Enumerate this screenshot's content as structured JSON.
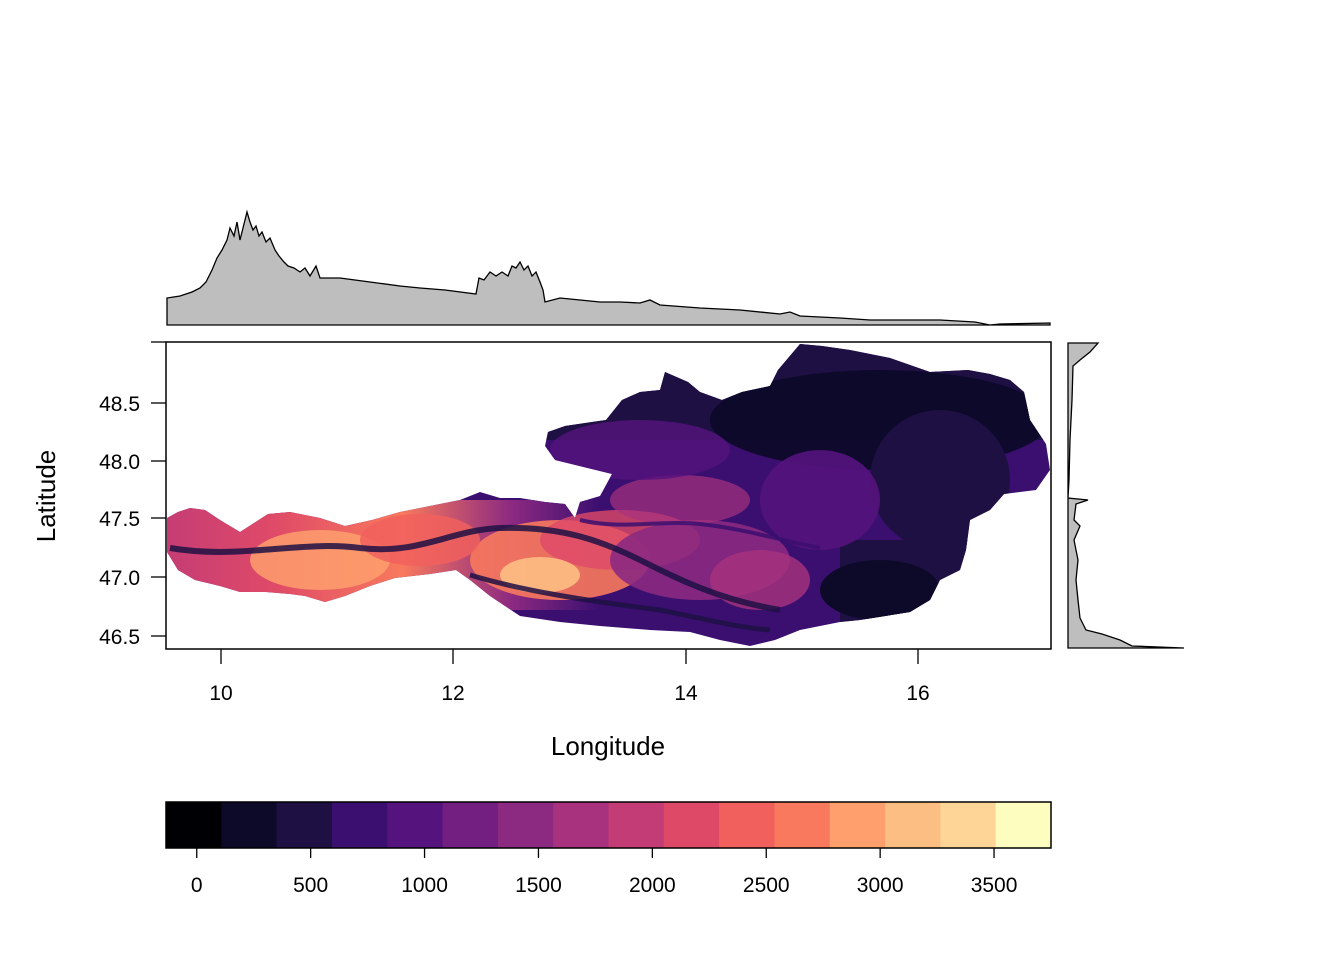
{
  "map": {
    "xlabel": "Longitude",
    "ylabel": "Latitude",
    "x_ticks": [
      "10",
      "12",
      "14",
      "16"
    ],
    "y_ticks": [
      "46.5",
      "47.0",
      "47.5",
      "48.0",
      "48.5"
    ]
  },
  "legend": {
    "tick_labels": [
      "0",
      "500",
      "1000",
      "1500",
      "2000",
      "2500",
      "3000",
      "3500"
    ],
    "colors": [
      "#000004",
      "#0d0a29",
      "#1f1044",
      "#3b0f70",
      "#55137d",
      "#721f81",
      "#8c2981",
      "#a8327d",
      "#c43c75",
      "#de4968",
      "#f1605d",
      "#f8795d",
      "#fe9f6d",
      "#fdbe84",
      "#fed597",
      "#fcfdbf"
    ]
  },
  "chart_data": {
    "type": "heatmap",
    "xlabel": "Longitude",
    "ylabel": "Latitude",
    "xlim": [
      9.53,
      17.16
    ],
    "ylim": [
      46.37,
      49.02
    ],
    "colorbar_range": [
      -135,
      3750
    ],
    "colorbar_ticks": [
      0,
      500,
      1000,
      1500,
      2000,
      2500,
      3000,
      3500
    ],
    "marginal_top": "mean elevation by longitude (filled profile)",
    "marginal_right": "mean elevation by latitude (filled profile)"
  }
}
